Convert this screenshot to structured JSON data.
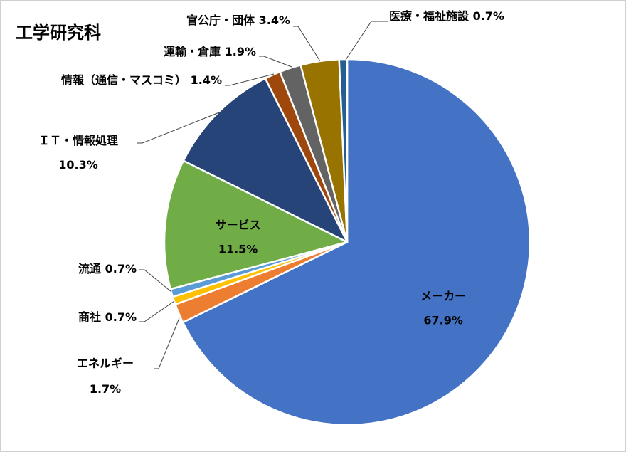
{
  "chart_data": {
    "type": "pie",
    "title": "工学研究科",
    "slices": [
      {
        "label": "メーカー",
        "value_text": "67.9%",
        "value": 67.9,
        "color": "#4472C4"
      },
      {
        "label": "エネルギー",
        "value_text": "1.7%",
        "value": 1.7,
        "color": "#ED7D31"
      },
      {
        "label": "商社",
        "value_text": "0.7%",
        "value": 0.7,
        "color": "#FFC000"
      },
      {
        "label": "流通",
        "value_text": "0.7%",
        "value": 0.7,
        "color": "#5B9BD5"
      },
      {
        "label": "サービス",
        "value_text": "11.5%",
        "value": 11.5,
        "color": "#70AD47"
      },
      {
        "label": "ＩＴ・情報処理",
        "value_text": "10.3%",
        "value": 10.3,
        "color": "#264478"
      },
      {
        "label": "情報（通信・マスコミ）",
        "value_text": "1.4%",
        "value": 1.4,
        "color": "#9E480E"
      },
      {
        "label": "運輸・倉庫",
        "value_text": "1.9%",
        "value": 1.9,
        "color": "#636363"
      },
      {
        "label": "官公庁・団体",
        "value_text": "3.4%",
        "value": 3.4,
        "color": "#997300"
      },
      {
        "label": "医療・福祉施設",
        "value_text": "0.7%",
        "value": 0.7,
        "color": "#255E91"
      }
    ]
  }
}
